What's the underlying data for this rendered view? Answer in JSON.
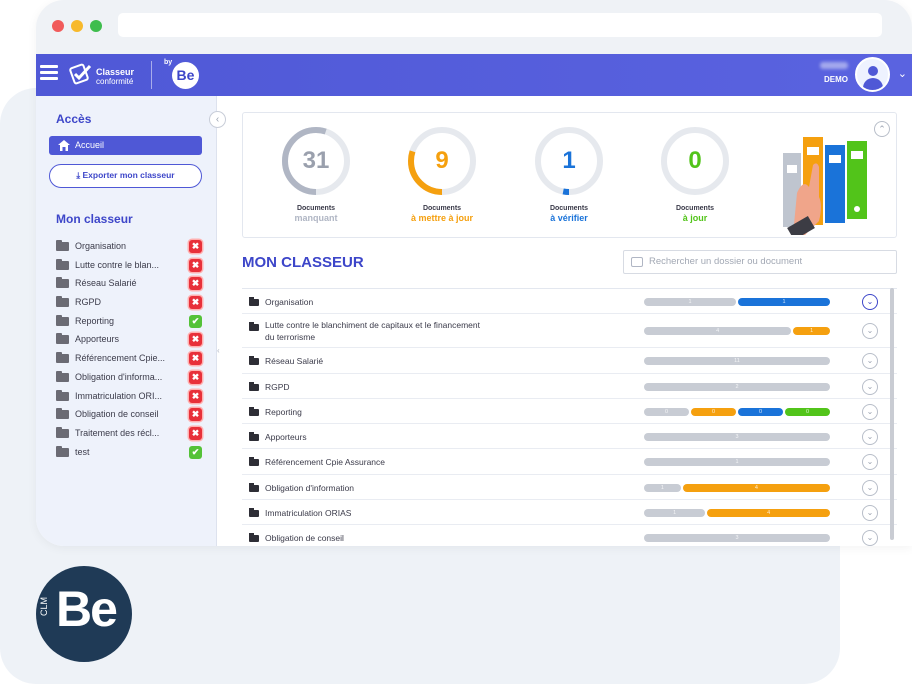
{
  "app": {
    "logo_name": "Classeur",
    "logo_sub": "conformité",
    "by": "by",
    "be": "Be",
    "user_name": "DEMO",
    "badge_clm": "CLM",
    "badge_be": "Be"
  },
  "sidebar": {
    "acces_title": "Accès",
    "accueil": "Accueil",
    "export_button": "Exporter mon classeur",
    "classeur_title": "Mon classeur",
    "items": [
      {
        "label": "Organisation",
        "status": "ko"
      },
      {
        "label": "Lutte contre le blan...",
        "status": "ko"
      },
      {
        "label": "Réseau Salarié",
        "status": "ko"
      },
      {
        "label": "RGPD",
        "status": "ko"
      },
      {
        "label": "Reporting",
        "status": "ok"
      },
      {
        "label": "Apporteurs",
        "status": "ko"
      },
      {
        "label": "Référencement Cpie...",
        "status": "ko"
      },
      {
        "label": "Obligation d'informa...",
        "status": "ko"
      },
      {
        "label": "Immatriculation ORI...",
        "status": "ko"
      },
      {
        "label": "Obligation de conseil",
        "status": "ko"
      },
      {
        "label": "Traitement des récl...",
        "status": "ko"
      },
      {
        "label": "test",
        "status": "ok"
      }
    ]
  },
  "stats": [
    {
      "value": "31",
      "label": "Documents",
      "sub": "manquant",
      "color": "#b0b6c4",
      "fraction": 0.55
    },
    {
      "value": "9",
      "label": "Documents",
      "sub": "à mettre à jour",
      "color": "#f5a00f",
      "fraction": 0.3
    },
    {
      "value": "1",
      "label": "Documents",
      "sub": "à vérifier",
      "color": "#1a73d9",
      "fraction": 0.03
    },
    {
      "value": "0",
      "label": "Documents",
      "sub": "à jour",
      "color": "#52c41a",
      "fraction": 0.0
    }
  ],
  "main": {
    "title": "MON CLASSEUR",
    "search_placeholder": "Rechercher un dossier ou document"
  },
  "colors": {
    "grey": "#c8ccd4",
    "orange": "#f5a00f",
    "blue": "#1a73d9",
    "green": "#52c41a"
  },
  "rows": [
    {
      "name": "Organisation",
      "segments": [
        {
          "color": "grey",
          "value": "1",
          "flex": 1
        },
        {
          "color": "blue",
          "value": "1",
          "flex": 1
        }
      ],
      "active": true
    },
    {
      "name": "Lutte contre le blanchiment de capitaux et le financement du terrorisme",
      "segments": [
        {
          "color": "grey",
          "value": "4",
          "flex": 4
        },
        {
          "color": "orange",
          "value": "1",
          "flex": 1
        }
      ]
    },
    {
      "name": "Réseau Salarié",
      "segments": [
        {
          "color": "grey",
          "value": "11",
          "flex": 1
        }
      ]
    },
    {
      "name": "RGPD",
      "segments": [
        {
          "color": "grey",
          "value": "2",
          "flex": 1
        }
      ]
    },
    {
      "name": "Reporting",
      "segments": [
        {
          "color": "grey",
          "value": "0",
          "flex": 1
        },
        {
          "color": "orange",
          "value": "0",
          "flex": 1
        },
        {
          "color": "blue",
          "value": "0",
          "flex": 1
        },
        {
          "color": "green",
          "value": "0",
          "flex": 1
        }
      ]
    },
    {
      "name": "Apporteurs",
      "segments": [
        {
          "color": "grey",
          "value": "3",
          "flex": 1
        }
      ]
    },
    {
      "name": "Référencement Cpie Assurance",
      "segments": [
        {
          "color": "grey",
          "value": "1",
          "flex": 1
        }
      ]
    },
    {
      "name": "Obligation d'information",
      "segments": [
        {
          "color": "grey",
          "value": "1",
          "flex": 1
        },
        {
          "color": "orange",
          "value": "4",
          "flex": 4
        }
      ]
    },
    {
      "name": "Immatriculation ORIAS",
      "segments": [
        {
          "color": "grey",
          "value": "1",
          "flex": 1
        },
        {
          "color": "orange",
          "value": "4",
          "flex": 2
        }
      ]
    },
    {
      "name": "Obligation de conseil",
      "segments": [
        {
          "color": "grey",
          "value": "3",
          "flex": 1
        }
      ]
    }
  ]
}
